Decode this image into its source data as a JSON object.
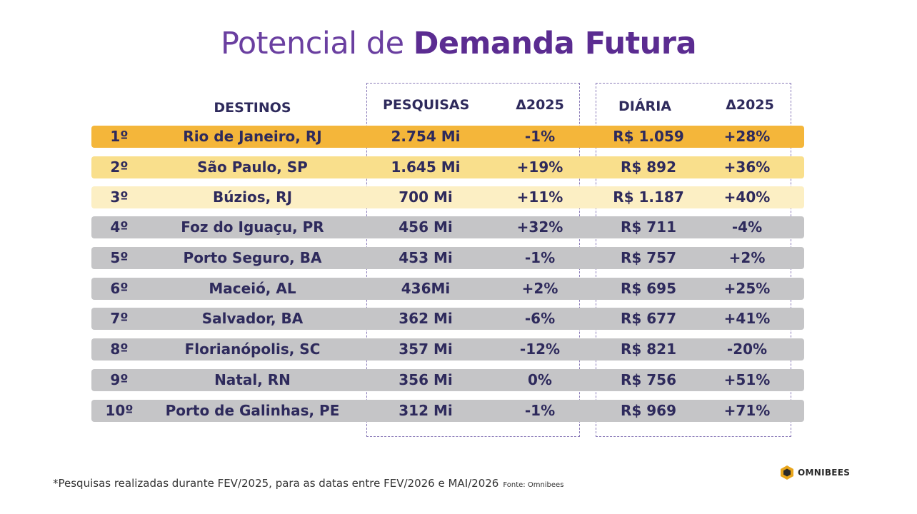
{
  "title": {
    "regular": "Potencial de ",
    "bold": "Demanda Futura"
  },
  "headers": {
    "destinos": "DESTINOS",
    "pesquisas": "PESQUISAS",
    "delta_pesquisas": "Δ2025",
    "diaria": "DIÁRIA",
    "delta_diaria": "Δ2025"
  },
  "colors": {
    "row_1": "#f4b63a",
    "row_2": "#f9df8c",
    "row_3": "#fcefc4",
    "row_other": "#c5c5c7"
  },
  "rows": [
    {
      "rank": "1º",
      "destino": "Rio de Janeiro, RJ",
      "pesquisas": "2.754 Mi",
      "delta_pesquisas": "-1%",
      "diaria": "R$ 1.059",
      "delta_diaria": "+28%"
    },
    {
      "rank": "2º",
      "destino": "São Paulo, SP",
      "pesquisas": "1.645 Mi",
      "delta_pesquisas": "+19%",
      "diaria": "R$ 892",
      "delta_diaria": "+36%"
    },
    {
      "rank": "3º",
      "destino": "Búzios, RJ",
      "pesquisas": "700 Mi",
      "delta_pesquisas": "+11%",
      "diaria": "R$ 1.187",
      "delta_diaria": "+40%"
    },
    {
      "rank": "4º",
      "destino": "Foz do Iguaçu, PR",
      "pesquisas": "456 Mi",
      "delta_pesquisas": "+32%",
      "diaria": "R$ 711",
      "delta_diaria": "-4%"
    },
    {
      "rank": "5º",
      "destino": "Porto Seguro, BA",
      "pesquisas": "453 Mi",
      "delta_pesquisas": "-1%",
      "diaria": "R$ 757",
      "delta_diaria": "+2%"
    },
    {
      "rank": "6º",
      "destino": "Maceió, AL",
      "pesquisas": "436Mi",
      "delta_pesquisas": "+2%",
      "diaria": "R$ 695",
      "delta_diaria": "+25%"
    },
    {
      "rank": "7º",
      "destino": "Salvador, BA",
      "pesquisas": "362 Mi",
      "delta_pesquisas": "-6%",
      "diaria": "R$ 677",
      "delta_diaria": "+41%"
    },
    {
      "rank": "8º",
      "destino": "Florianópolis, SC",
      "pesquisas": "357 Mi",
      "delta_pesquisas": "-12%",
      "diaria": "R$ 821",
      "delta_diaria": "-20%"
    },
    {
      "rank": "9º",
      "destino": "Natal, RN",
      "pesquisas": "356 Mi",
      "delta_pesquisas": "0%",
      "diaria": "R$ 756",
      "delta_diaria": "+51%"
    },
    {
      "rank": "10º",
      "destino": "Porto de Galinhas, PE",
      "pesquisas": "312 Mi",
      "delta_pesquisas": "-1%",
      "diaria": "R$ 969",
      "delta_diaria": "+71%"
    }
  ],
  "footer": {
    "note": "*Pesquisas realizadas durante FEV/2025, para as datas entre FEV/2026 e MAI/2026",
    "source": "Fonte: Omnibees"
  },
  "logo": {
    "text": "OMNIBEES",
    "icon": "hexagon-logo-icon"
  }
}
